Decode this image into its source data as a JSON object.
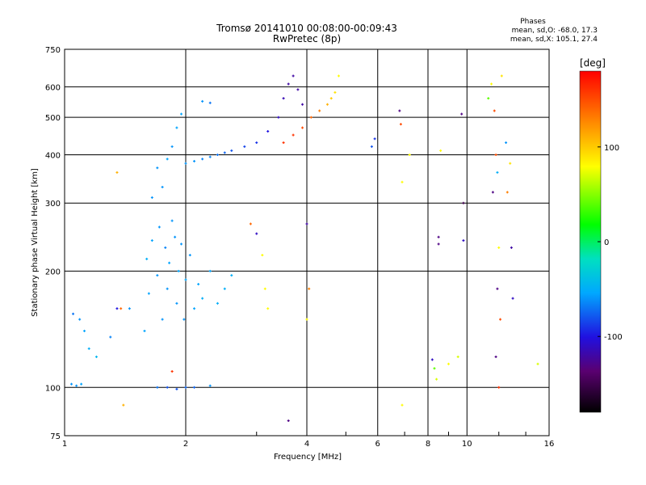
{
  "header": {
    "title": "Tromsø 20141010 00:08:00-00:09:43",
    "subtitle": "RwPretec (8p)",
    "phases_label": "Phases",
    "stat_o": "mean, sd,O: -68.0, 17.3",
    "stat_x": "mean, sd,X: 105.1, 27.4"
  },
  "chart_data": {
    "type": "scatter",
    "title": "Tromsø 20141010 00:08:00-00:09:43",
    "subtitle": "RwPretec (8p)",
    "xlabel": "Frequency [MHz]",
    "ylabel": "Stationary phase Virtual Height [km]",
    "x_scale": "log",
    "y_scale": "log",
    "xlim": [
      1,
      16
    ],
    "ylim": [
      75,
      750
    ],
    "x_ticks": [
      1,
      2,
      4,
      6,
      8,
      10,
      16
    ],
    "y_ticks": [
      75,
      100,
      200,
      300,
      400,
      500,
      600,
      750
    ],
    "grid": true,
    "colorbar": {
      "label": "[deg]",
      "range": [
        -180,
        180
      ],
      "ticks": [
        100,
        0,
        -100
      ],
      "colormap": "rainbow"
    },
    "points": [
      {
        "f": 1.04,
        "h": 102,
        "c": -60
      },
      {
        "f": 1.07,
        "h": 101,
        "c": -60
      },
      {
        "f": 1.1,
        "h": 102,
        "c": -55
      },
      {
        "f": 1.05,
        "h": 155,
        "c": -70
      },
      {
        "f": 1.09,
        "h": 150,
        "c": -60
      },
      {
        "f": 1.12,
        "h": 140,
        "c": -55
      },
      {
        "f": 1.15,
        "h": 126,
        "c": -50
      },
      {
        "f": 1.2,
        "h": 120,
        "c": -45
      },
      {
        "f": 1.3,
        "h": 135,
        "c": -65
      },
      {
        "f": 1.35,
        "h": 160,
        "c": -100
      },
      {
        "f": 1.38,
        "h": 160,
        "c": 140
      },
      {
        "f": 1.35,
        "h": 360,
        "c": 110
      },
      {
        "f": 1.4,
        "h": 90,
        "c": 110
      },
      {
        "f": 1.45,
        "h": 160,
        "c": -60
      },
      {
        "f": 1.58,
        "h": 140,
        "c": -55
      },
      {
        "f": 1.62,
        "h": 175,
        "c": -55
      },
      {
        "f": 1.6,
        "h": 215,
        "c": -50
      },
      {
        "f": 1.65,
        "h": 240,
        "c": -55
      },
      {
        "f": 1.7,
        "h": 195,
        "c": -60
      },
      {
        "f": 1.72,
        "h": 260,
        "c": -60
      },
      {
        "f": 1.75,
        "h": 150,
        "c": -60
      },
      {
        "f": 1.78,
        "h": 230,
        "c": -65
      },
      {
        "f": 1.8,
        "h": 180,
        "c": -60
      },
      {
        "f": 1.82,
        "h": 210,
        "c": -55
      },
      {
        "f": 1.85,
        "h": 270,
        "c": -60
      },
      {
        "f": 1.88,
        "h": 245,
        "c": -60
      },
      {
        "f": 1.9,
        "h": 165,
        "c": -60
      },
      {
        "f": 1.92,
        "h": 200,
        "c": -55
      },
      {
        "f": 1.95,
        "h": 235,
        "c": -60
      },
      {
        "f": 1.98,
        "h": 150,
        "c": -60
      },
      {
        "f": 2.0,
        "h": 190,
        "c": -55
      },
      {
        "f": 2.05,
        "h": 220,
        "c": -60
      },
      {
        "f": 2.1,
        "h": 160,
        "c": -55
      },
      {
        "f": 2.15,
        "h": 185,
        "c": -55
      },
      {
        "f": 2.2,
        "h": 170,
        "c": -50
      },
      {
        "f": 2.3,
        "h": 200,
        "c": -55
      },
      {
        "f": 2.4,
        "h": 165,
        "c": -50
      },
      {
        "f": 2.5,
        "h": 180,
        "c": -50
      },
      {
        "f": 2.6,
        "h": 195,
        "c": -50
      },
      {
        "f": 1.65,
        "h": 310,
        "c": -60
      },
      {
        "f": 1.75,
        "h": 330,
        "c": -60
      },
      {
        "f": 1.7,
        "h": 370,
        "c": -60
      },
      {
        "f": 1.8,
        "h": 390,
        "c": -55
      },
      {
        "f": 1.85,
        "h": 420,
        "c": -60
      },
      {
        "f": 1.9,
        "h": 470,
        "c": -55
      },
      {
        "f": 1.95,
        "h": 510,
        "c": -55
      },
      {
        "f": 2.0,
        "h": 380,
        "c": -60
      },
      {
        "f": 2.1,
        "h": 385,
        "c": -60
      },
      {
        "f": 2.2,
        "h": 390,
        "c": -65
      },
      {
        "f": 2.3,
        "h": 395,
        "c": -65
      },
      {
        "f": 2.4,
        "h": 400,
        "c": -70
      },
      {
        "f": 2.5,
        "h": 405,
        "c": -75
      },
      {
        "f": 2.6,
        "h": 410,
        "c": -80
      },
      {
        "f": 2.8,
        "h": 420,
        "c": -85
      },
      {
        "f": 3.0,
        "h": 430,
        "c": -90
      },
      {
        "f": 3.2,
        "h": 460,
        "c": -100
      },
      {
        "f": 3.4,
        "h": 500,
        "c": -110
      },
      {
        "f": 3.5,
        "h": 560,
        "c": -115
      },
      {
        "f": 3.6,
        "h": 610,
        "c": -120
      },
      {
        "f": 3.7,
        "h": 640,
        "c": -120
      },
      {
        "f": 3.8,
        "h": 590,
        "c": -120
      },
      {
        "f": 3.9,
        "h": 540,
        "c": -120
      },
      {
        "f": 3.5,
        "h": 430,
        "c": 160
      },
      {
        "f": 3.7,
        "h": 450,
        "c": 160
      },
      {
        "f": 3.9,
        "h": 470,
        "c": 150
      },
      {
        "f": 4.1,
        "h": 500,
        "c": 140
      },
      {
        "f": 4.3,
        "h": 520,
        "c": 130
      },
      {
        "f": 4.5,
        "h": 540,
        "c": 110
      },
      {
        "f": 4.6,
        "h": 560,
        "c": 100
      },
      {
        "f": 4.7,
        "h": 580,
        "c": 90
      },
      {
        "f": 4.8,
        "h": 640,
        "c": 80
      },
      {
        "f": 1.7,
        "h": 100,
        "c": -70
      },
      {
        "f": 1.8,
        "h": 100,
        "c": -80
      },
      {
        "f": 1.9,
        "h": 99,
        "c": -80
      },
      {
        "f": 2.0,
        "h": 100,
        "c": -75
      },
      {
        "f": 2.1,
        "h": 100,
        "c": -75
      },
      {
        "f": 2.3,
        "h": 101,
        "c": -60
      },
      {
        "f": 1.85,
        "h": 110,
        "c": 160
      },
      {
        "f": 2.2,
        "h": 550,
        "c": -60
      },
      {
        "f": 2.3,
        "h": 545,
        "c": -70
      },
      {
        "f": 2.9,
        "h": 265,
        "c": 140
      },
      {
        "f": 3.0,
        "h": 250,
        "c": -110
      },
      {
        "f": 3.1,
        "h": 220,
        "c": 80
      },
      {
        "f": 3.15,
        "h": 180,
        "c": 80
      },
      {
        "f": 3.2,
        "h": 160,
        "c": 80
      },
      {
        "f": 4.0,
        "h": 265,
        "c": -120
      },
      {
        "f": 4.05,
        "h": 180,
        "c": 130
      },
      {
        "f": 4.0,
        "h": 150,
        "c": 80
      },
      {
        "f": 3.6,
        "h": 82,
        "c": -130
      },
      {
        "f": 5.8,
        "h": 420,
        "c": -80
      },
      {
        "f": 5.9,
        "h": 440,
        "c": -90
      },
      {
        "f": 6.8,
        "h": 520,
        "c": -130
      },
      {
        "f": 6.85,
        "h": 480,
        "c": 150
      },
      {
        "f": 6.9,
        "h": 340,
        "c": 80
      },
      {
        "f": 7.2,
        "h": 400,
        "c": 80
      },
      {
        "f": 6.9,
        "h": 90,
        "c": 80
      },
      {
        "f": 8.2,
        "h": 118,
        "c": -110
      },
      {
        "f": 8.3,
        "h": 112,
        "c": 40
      },
      {
        "f": 8.4,
        "h": 105,
        "c": 70
      },
      {
        "f": 8.5,
        "h": 245,
        "c": -130
      },
      {
        "f": 8.5,
        "h": 235,
        "c": -130
      },
      {
        "f": 8.6,
        "h": 410,
        "c": 80
      },
      {
        "f": 9.0,
        "h": 115,
        "c": 80
      },
      {
        "f": 9.5,
        "h": 120,
        "c": 70
      },
      {
        "f": 9.7,
        "h": 510,
        "c": -130
      },
      {
        "f": 9.8,
        "h": 300,
        "c": -150
      },
      {
        "f": 9.8,
        "h": 240,
        "c": -110
      },
      {
        "f": 11.3,
        "h": 560,
        "c": 40
      },
      {
        "f": 11.5,
        "h": 610,
        "c": 80
      },
      {
        "f": 11.7,
        "h": 520,
        "c": 150
      },
      {
        "f": 11.8,
        "h": 400,
        "c": 150
      },
      {
        "f": 11.9,
        "h": 360,
        "c": -50
      },
      {
        "f": 11.6,
        "h": 320,
        "c": -130
      },
      {
        "f": 12.0,
        "h": 230,
        "c": 80
      },
      {
        "f": 11.9,
        "h": 180,
        "c": -130
      },
      {
        "f": 12.1,
        "h": 150,
        "c": 150
      },
      {
        "f": 11.8,
        "h": 120,
        "c": -130
      },
      {
        "f": 12.0,
        "h": 100,
        "c": 160
      },
      {
        "f": 12.2,
        "h": 640,
        "c": 90
      },
      {
        "f": 12.5,
        "h": 430,
        "c": -60
      },
      {
        "f": 12.8,
        "h": 380,
        "c": 90
      },
      {
        "f": 12.6,
        "h": 320,
        "c": 130
      },
      {
        "f": 12.9,
        "h": 230,
        "c": -120
      },
      {
        "f": 13.0,
        "h": 170,
        "c": -110
      },
      {
        "f": 15.0,
        "h": 115,
        "c": 70
      }
    ]
  }
}
